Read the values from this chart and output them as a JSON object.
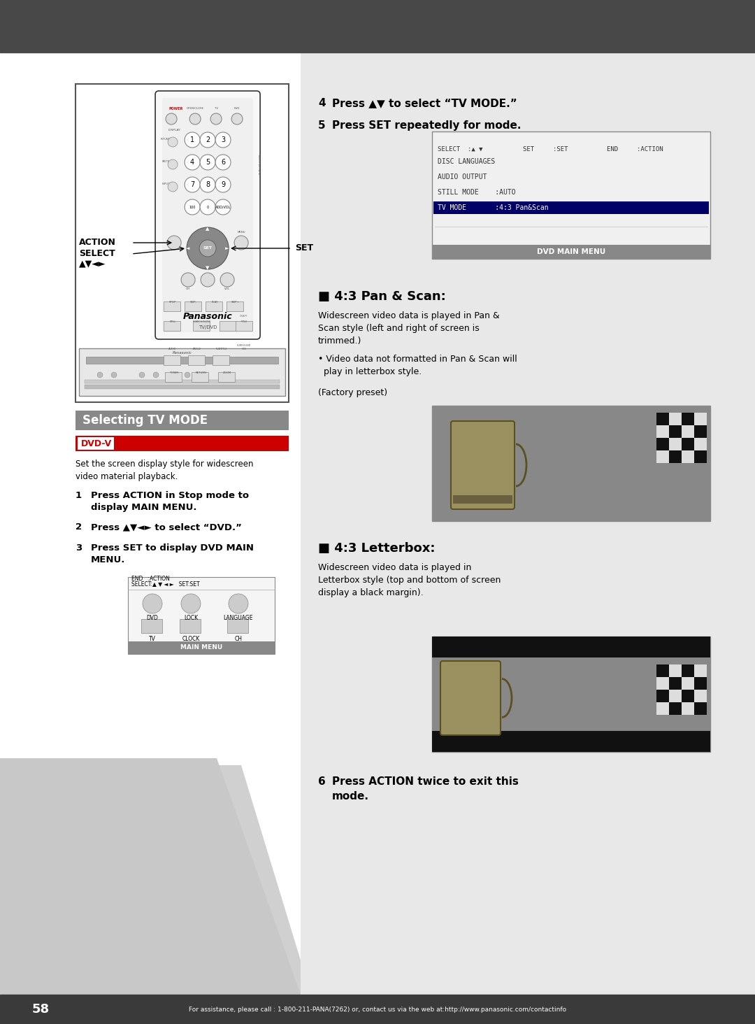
{
  "page_bg": "#ffffff",
  "header_bg": "#484848",
  "footer_bg": "#3a3a3a",
  "footer_text": "For assistance, please call : 1-800-211-PANA(7262) or, contact us via the web at:http://www.panasonic.com/contactinfo",
  "page_number": "58",
  "section_title": "Selecting TV MODE",
  "section_title_bg": "#888888",
  "section_title_color": "#ffffff",
  "dvd_v_label": "DVD-V",
  "dvd_v_bg": "#cc0000",
  "dvd_v_border": "#cc0000",
  "intro_text": "Set the screen display style for widescreen\nvideo material playback.",
  "step1_num": "1",
  "step1": "Press ACTION in Stop mode to\ndisplay MAIN MENU.",
  "step2_num": "2",
  "step2": "Press ▲▼◄► to select “DVD.”",
  "step3_num": "3",
  "step3": "Press SET to display DVD MAIN\nMENU.",
  "step4": "4  Press ▲▼ to select “TV MODE.”",
  "step5": "5  Press SET repeatedly for mode.",
  "step6_num": "6",
  "step6": "Press ACTION twice to exit this\nmode.",
  "pan_scan_title": "■ 4:3 Pan & Scan:",
  "pan_scan_body": "Widescreen video data is played in Pan &\nScan style (left and right of screen is\ntrimmed.)",
  "pan_scan_bullet": "• Video data not formatted in Pan & Scan will\n  play in letterbox style.",
  "pan_scan_factory": "(Factory preset)",
  "letterbox_title": "■ 4:3 Letterbox:",
  "letterbox_body": "Widescreen video data is played in\nLetterbox style (top and bottom of screen\ndisplay a black margin).",
  "gray_bg": "#d0d0d0",
  "light_gray_right": "#e0e0e0",
  "dvd_menu_title": "DVD MAIN MENU",
  "dvd_menu_items": [
    "DISC LANGUAGES",
    "AUDIO OUTPUT",
    "STILL MODE    :AUTO",
    "TV MODE       :4:3 Pan&Scan"
  ],
  "dvd_menu_footer": [
    "SELECT  :▲ ▼",
    "SET     :SET",
    "END     :ACTION"
  ],
  "main_menu_title": "MAIN MENU",
  "action_label": "ACTION",
  "select_label": "SELECT",
  "set_label": "SET",
  "nav_symbols": "▲▼◄►"
}
